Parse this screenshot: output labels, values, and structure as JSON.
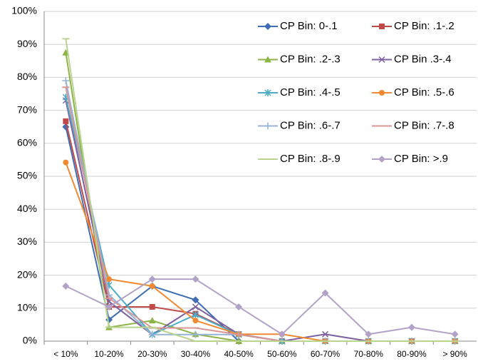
{
  "chart_data": {
    "type": "line",
    "categories": [
      "< 10%",
      "10-20%",
      "20-30%",
      "30-40%",
      "40-50%",
      "50-60%",
      "60-70%",
      "70-80%",
      "80-90%",
      "> 90%"
    ],
    "ylim": [
      0,
      100
    ],
    "yticks": [
      {
        "value": 0,
        "label": "0%"
      },
      {
        "value": 10,
        "label": "10%"
      },
      {
        "value": 20,
        "label": "20%"
      },
      {
        "value": 30,
        "label": "30%"
      },
      {
        "value": 40,
        "label": "40%"
      },
      {
        "value": 50,
        "label": "50%"
      },
      {
        "value": 60,
        "label": "60%"
      },
      {
        "value": 70,
        "label": "70%"
      },
      {
        "value": 80,
        "label": "80%"
      },
      {
        "value": 90,
        "label": "90%"
      },
      {
        "value": 100,
        "label": "100%"
      }
    ],
    "grid": true,
    "series": [
      {
        "name": "CP Bin: 0-.1",
        "color": "#3f6eb5",
        "marker": "diamond",
        "values": [
          65,
          6.5,
          16.7,
          12.5,
          0,
          0,
          0,
          0,
          0,
          0
        ]
      },
      {
        "name": "CP Bin: .1-.2",
        "color": "#be4b48",
        "marker": "square",
        "values": [
          66.7,
          10.4,
          10.4,
          8.3,
          2.1,
          0,
          0,
          0,
          0,
          0
        ]
      },
      {
        "name": "CP Bin: .2-.3",
        "color": "#8eb447",
        "marker": "triangle",
        "values": [
          87.5,
          4.2,
          6.25,
          2.1,
          0,
          0,
          0,
          0,
          0,
          0
        ]
      },
      {
        "name": "CP Bin .3-.4",
        "color": "#7d60a0",
        "marker": "x",
        "values": [
          73,
          12,
          2,
          10.4,
          2.1,
          0,
          2.1,
          0,
          0,
          0
        ]
      },
      {
        "name": "CP Bin: .4-.5",
        "color": "#4bacc6",
        "marker": "asterisk",
        "values": [
          74,
          17,
          2,
          8,
          2,
          0,
          0,
          0,
          0,
          0
        ]
      },
      {
        "name": "CP Bin: .5-.6",
        "color": "#f08a32",
        "marker": "circle",
        "values": [
          54.2,
          18.8,
          16.7,
          6.25,
          2.1,
          2.1,
          0,
          0,
          0,
          0
        ]
      },
      {
        "name": "CP Bin: .6-.7",
        "color": "#95b3d7",
        "marker": "plus",
        "values": [
          79,
          14,
          2,
          2,
          2,
          0,
          0,
          0,
          0,
          0
        ]
      },
      {
        "name": "CP Bin: .7-.8",
        "color": "#da9694",
        "marker": "dash",
        "values": [
          77,
          13,
          4,
          4,
          2,
          0,
          0,
          0,
          0,
          0
        ]
      },
      {
        "name": "CP Bin: .8-.9",
        "color": "#b8d48e",
        "marker": "dash",
        "values": [
          91.7,
          4.2,
          4.2,
          0,
          0,
          0,
          0,
          0,
          0,
          0
        ]
      },
      {
        "name": "CP Bin: >.9",
        "color": "#b3a2c7",
        "marker": "diamond",
        "values": [
          16.7,
          10.4,
          18.8,
          18.8,
          10.4,
          2.1,
          14.6,
          2.1,
          4.2,
          2.1
        ]
      }
    ]
  }
}
